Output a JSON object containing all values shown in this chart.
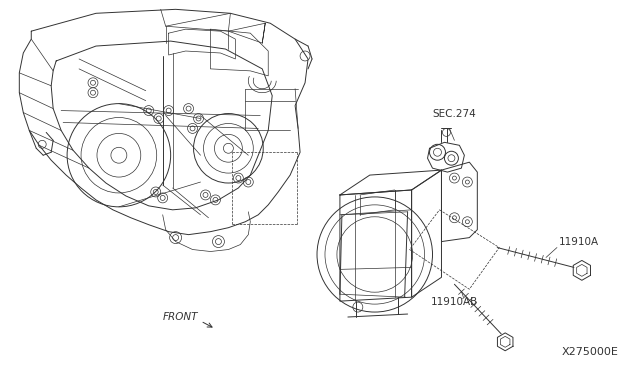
{
  "background_color": "#ffffff",
  "line_color": "#333333",
  "label_color": "#333333",
  "labels": {
    "SEC274": "SEC.274",
    "11910A": "11910A",
    "11910AB": "11910AB",
    "X275000E": "X275000E",
    "FRONT": "FRONT"
  },
  "font_size": 7.5,
  "fig_width": 6.4,
  "fig_height": 3.72,
  "dpi": 100
}
